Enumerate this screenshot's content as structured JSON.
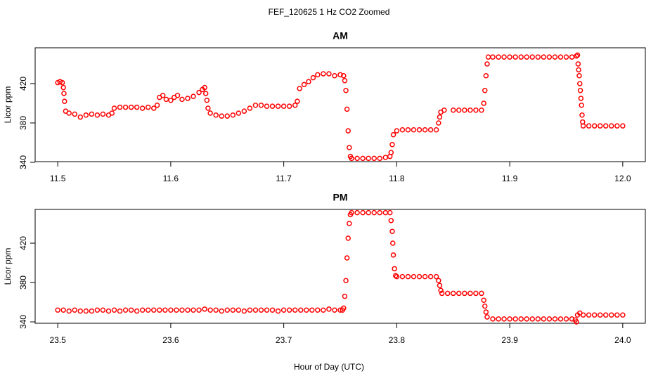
{
  "title": "FEF_120625  1 Hz CO2 Zoomed",
  "xlabel": "Hour of Day (UTC)",
  "chart_data": [
    {
      "type": "scatter",
      "title": "AM",
      "ylabel": "Licor ppm",
      "xlim": [
        11.48,
        12.02
      ],
      "ylim": [
        340.7,
        456.4
      ],
      "xticks": [
        11.5,
        11.6,
        11.7,
        11.8,
        11.9,
        {
          "value": 12,
          "label": "12.0"
        }
      ],
      "yticks": [
        340,
        380,
        420
      ],
      "series": [
        {
          "name": "CO2",
          "color": "#ff0000",
          "x": [
            11.5,
            11.502,
            11.504,
            11.505,
            11.5055,
            11.506,
            11.507,
            11.51,
            11.515,
            11.52,
            11.525,
            11.53,
            11.535,
            11.54,
            11.545,
            11.548,
            11.55,
            11.555,
            11.56,
            11.565,
            11.57,
            11.575,
            11.58,
            11.585,
            11.588,
            11.59,
            11.593,
            11.596,
            11.6,
            11.603,
            11.606,
            11.61,
            11.615,
            11.62,
            11.625,
            11.628,
            11.63,
            11.631,
            11.632,
            11.633,
            11.635,
            11.64,
            11.645,
            11.65,
            11.655,
            11.66,
            11.665,
            11.67,
            11.675,
            11.68,
            11.685,
            11.69,
            11.695,
            11.7,
            11.705,
            11.71,
            11.712,
            11.714,
            11.718,
            11.722,
            11.726,
            11.73,
            11.735,
            11.74,
            11.745,
            11.75,
            11.753,
            11.754,
            11.755,
            11.756,
            11.757,
            11.758,
            11.759,
            11.76,
            11.765,
            11.77,
            11.775,
            11.78,
            11.785,
            11.79,
            11.794,
            11.795,
            11.796,
            11.797,
            11.8,
            11.805,
            11.81,
            11.815,
            11.82,
            11.825,
            11.83,
            11.835,
            11.837,
            11.838,
            11.839,
            11.842,
            11.85,
            11.855,
            11.86,
            11.865,
            11.87,
            11.875,
            11.877,
            11.878,
            11.879,
            11.88,
            11.881,
            11.885,
            11.89,
            11.895,
            11.9,
            11.905,
            11.91,
            11.915,
            11.92,
            11.925,
            11.93,
            11.935,
            11.94,
            11.945,
            11.95,
            11.955,
            11.959,
            11.96,
            11.9605,
            11.961,
            11.9615,
            11.962,
            11.9625,
            11.963,
            11.9635,
            11.964,
            11.9645,
            11.965,
            11.97,
            11.975,
            11.98,
            11.985,
            11.99,
            11.995,
            12.0
          ],
          "values": [
            421,
            422,
            421,
            416,
            410,
            402,
            392,
            390,
            389,
            386,
            388,
            389,
            388,
            389,
            388,
            390,
            395,
            396,
            396,
            396,
            396,
            395,
            396,
            395,
            398,
            406,
            408,
            404,
            403,
            406,
            408,
            404,
            405,
            407,
            411,
            414,
            416,
            410,
            403,
            395,
            390,
            388,
            387,
            387,
            388,
            390,
            392,
            395,
            398,
            398,
            397,
            397,
            397,
            397,
            397,
            398,
            402,
            415,
            419,
            422,
            426,
            429,
            430,
            430,
            428,
            429,
            428,
            423,
            413,
            394,
            372,
            355,
            346,
            344,
            344,
            344,
            344,
            344,
            344,
            345,
            346,
            350,
            358,
            368,
            372,
            373,
            373,
            373,
            373,
            373,
            373,
            373,
            380,
            386,
            391,
            393,
            393,
            393,
            393,
            393,
            393,
            393,
            400,
            413,
            428,
            440,
            447,
            447,
            447,
            447,
            447,
            447,
            447,
            447,
            447,
            447,
            447,
            447,
            447,
            447,
            447,
            447,
            448,
            449,
            440,
            434,
            428,
            420,
            413,
            405,
            398,
            388,
            381,
            377,
            377,
            377,
            377,
            377,
            377,
            377,
            377
          ]
        }
      ]
    },
    {
      "type": "scatter",
      "title": "PM",
      "ylabel": "Licor ppm",
      "xlim": [
        23.48,
        24.02
      ],
      "ylim": [
        338.6,
        454.3
      ],
      "xticks": [
        23.5,
        23.6,
        23.7,
        23.8,
        23.9,
        {
          "value": 24,
          "label": "24.0"
        }
      ],
      "yticks": [
        340,
        380,
        420
      ],
      "series": [
        {
          "name": "CO2",
          "color": "#ff0000",
          "x": [
            23.5,
            23.505,
            23.51,
            23.515,
            23.52,
            23.525,
            23.53,
            23.535,
            23.54,
            23.545,
            23.55,
            23.555,
            23.56,
            23.565,
            23.57,
            23.575,
            23.58,
            23.585,
            23.59,
            23.595,
            23.6,
            23.605,
            23.61,
            23.615,
            23.62,
            23.625,
            23.63,
            23.635,
            23.64,
            23.645,
            23.65,
            23.655,
            23.66,
            23.665,
            23.67,
            23.675,
            23.68,
            23.685,
            23.69,
            23.695,
            23.7,
            23.705,
            23.71,
            23.715,
            23.72,
            23.725,
            23.73,
            23.735,
            23.74,
            23.745,
            23.75,
            23.752,
            23.753,
            23.754,
            23.755,
            23.756,
            23.757,
            23.758,
            23.759,
            23.76,
            23.765,
            23.77,
            23.775,
            23.78,
            23.785,
            23.79,
            23.794,
            23.795,
            23.796,
            23.7965,
            23.797,
            23.798,
            23.799,
            23.8,
            23.805,
            23.81,
            23.815,
            23.82,
            23.825,
            23.83,
            23.835,
            23.837,
            23.838,
            23.839,
            23.84,
            23.845,
            23.85,
            23.855,
            23.86,
            23.865,
            23.87,
            23.875,
            23.877,
            23.878,
            23.879,
            23.88,
            23.885,
            23.89,
            23.895,
            23.9,
            23.905,
            23.91,
            23.915,
            23.92,
            23.925,
            23.93,
            23.935,
            23.94,
            23.945,
            23.95,
            23.955,
            23.958,
            23.959,
            23.96,
            23.962,
            23.965,
            23.97,
            23.975,
            23.98,
            23.985,
            23.99,
            23.995,
            24.0
          ],
          "values": [
            352,
            352,
            351,
            352,
            351,
            351,
            351,
            352,
            352,
            351,
            352,
            351,
            352,
            352,
            351,
            352,
            352,
            352,
            352,
            352,
            352,
            352,
            352,
            352,
            352,
            352,
            353,
            352,
            352,
            351,
            352,
            352,
            352,
            351,
            352,
            352,
            352,
            352,
            352,
            351,
            352,
            352,
            352,
            352,
            352,
            352,
            352,
            352,
            353,
            352,
            352,
            352,
            354,
            366,
            382,
            405,
            425,
            440,
            449,
            451,
            451,
            451,
            451,
            451,
            451,
            451,
            451,
            443,
            432,
            420,
            408,
            394,
            387,
            386,
            386,
            386,
            386,
            386,
            386,
            386,
            386,
            382,
            377,
            372,
            369,
            369,
            369,
            369,
            369,
            369,
            369,
            369,
            362,
            356,
            350,
            345,
            343,
            343,
            343,
            343,
            343,
            343,
            343,
            343,
            343,
            343,
            343,
            343,
            343,
            343,
            343,
            342,
            340,
            347,
            349,
            347,
            347,
            347,
            347,
            347,
            347,
            347,
            347
          ]
        }
      ]
    }
  ]
}
